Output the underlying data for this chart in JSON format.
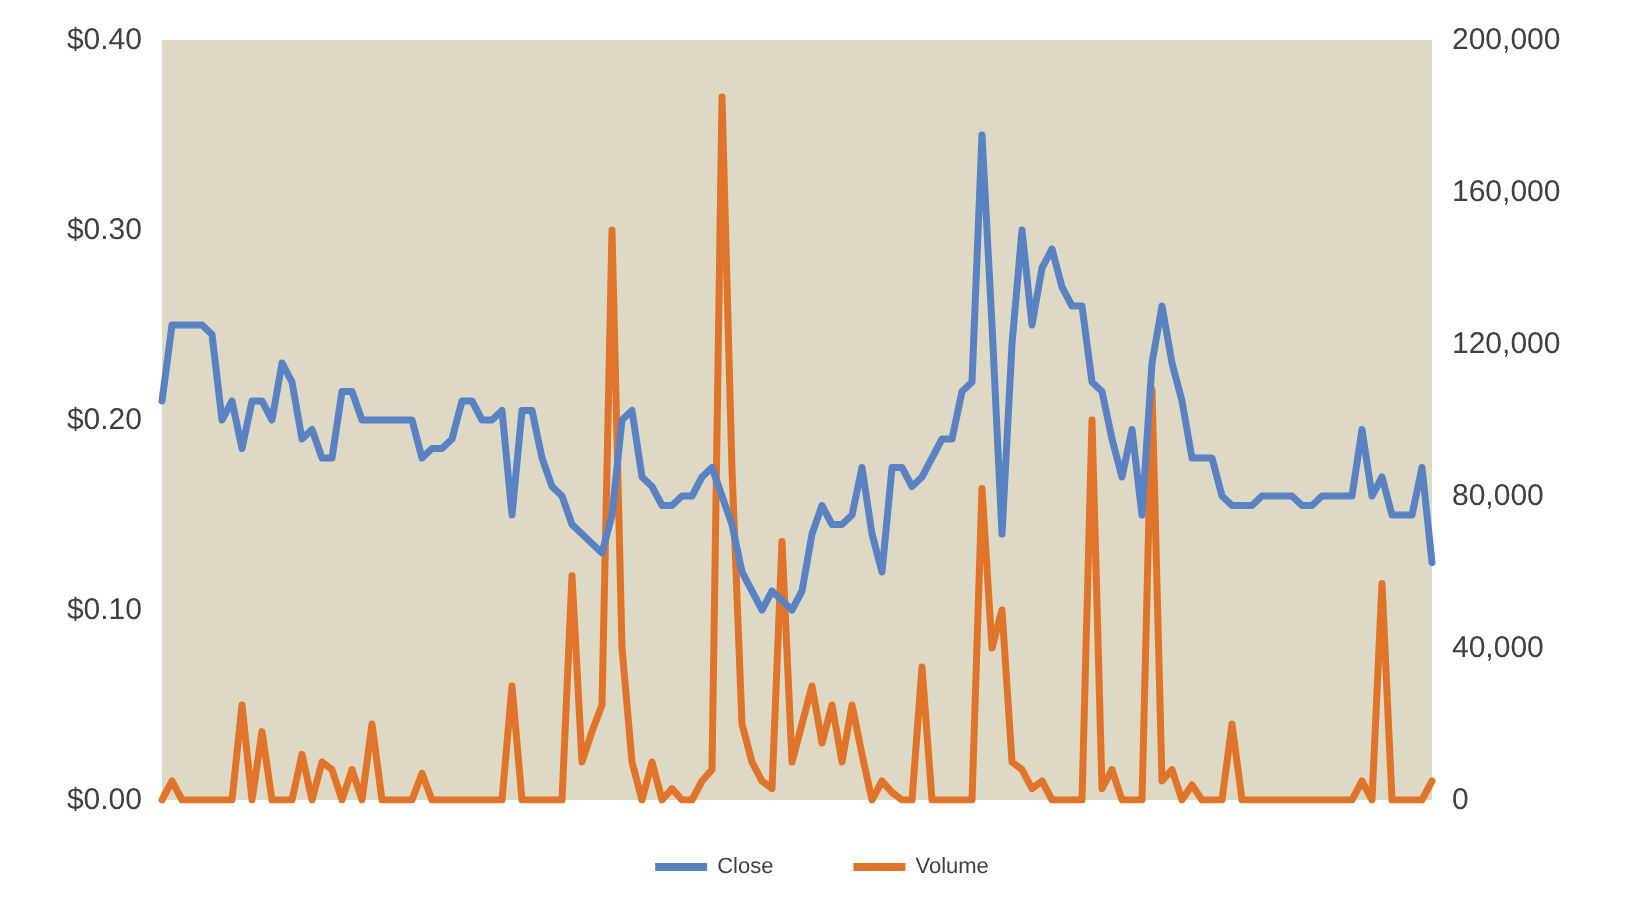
{
  "chart_data": {
    "type": "line",
    "categories": [
      null,
      null,
      null,
      null,
      null,
      null,
      null,
      null,
      null,
      null,
      null,
      null,
      null,
      null,
      null,
      null,
      null,
      null,
      null,
      null,
      null,
      null,
      null,
      null,
      null,
      null,
      null,
      null,
      null,
      null,
      null,
      null,
      null,
      null,
      null,
      null,
      null,
      null,
      null,
      null,
      null,
      null,
      null,
      null,
      null,
      null,
      null,
      null,
      null,
      null,
      null,
      null,
      null,
      null,
      null,
      null,
      null,
      null,
      null,
      null,
      null,
      null,
      null,
      null,
      null,
      null,
      null,
      null,
      null,
      null,
      null,
      null,
      null,
      null,
      null,
      null,
      null,
      null,
      null,
      null,
      null,
      null,
      null,
      null,
      null,
      null,
      null,
      null,
      null,
      null,
      null,
      null,
      null,
      null,
      null,
      null,
      null,
      null,
      null,
      null,
      null,
      null,
      null,
      null,
      null,
      null,
      null,
      null,
      null,
      null,
      null,
      null,
      null,
      null,
      null,
      null,
      null,
      null,
      null,
      null,
      null,
      null,
      null,
      null,
      null,
      null,
      null,
      null
    ],
    "series": [
      {
        "name": "Close",
        "color": "#5a82c3",
        "values": [
          0.21,
          0.25,
          0.25,
          0.25,
          0.25,
          0.245,
          0.2,
          0.21,
          0.185,
          0.21,
          0.21,
          0.2,
          0.23,
          0.22,
          0.19,
          0.195,
          0.18,
          0.18,
          0.215,
          0.215,
          0.2,
          0.2,
          0.2,
          0.2,
          0.2,
          0.2,
          0.18,
          0.185,
          0.185,
          0.19,
          0.21,
          0.21,
          0.2,
          0.2,
          0.205,
          0.15,
          0.205,
          0.205,
          0.18,
          0.165,
          0.16,
          0.145,
          0.14,
          0.135,
          0.13,
          0.15,
          0.2,
          0.205,
          0.17,
          0.165,
          0.155,
          0.155,
          0.16,
          0.16,
          0.17,
          0.175,
          0.16,
          0.145,
          0.12,
          0.11,
          0.1,
          0.11,
          0.105,
          0.1,
          0.11,
          0.14,
          0.155,
          0.145,
          0.145,
          0.15,
          0.175,
          0.14,
          0.12,
          0.175,
          0.175,
          0.165,
          0.17,
          0.18,
          0.19,
          0.19,
          0.215,
          0.22,
          0.35,
          0.25,
          0.14,
          0.24,
          0.3,
          0.25,
          0.28,
          0.29,
          0.27,
          0.26,
          0.26,
          0.22,
          0.215,
          0.19,
          0.17,
          0.195,
          0.15,
          0.23,
          0.26,
          0.23,
          0.21,
          0.18,
          0.18,
          0.18,
          0.16,
          0.155,
          0.155,
          0.155,
          0.16,
          0.16,
          0.16,
          0.16,
          0.155,
          0.155,
          0.16,
          0.16,
          0.16,
          0.16,
          0.195,
          0.16,
          0.17,
          0.15,
          0.15,
          0.15,
          0.175,
          0.125
        ]
      },
      {
        "name": "Volume",
        "color": "#e0742a",
        "axis": "y2",
        "values": [
          0,
          5000,
          0,
          0,
          0,
          0,
          0,
          0,
          25000,
          0,
          18000,
          0,
          0,
          0,
          12000,
          0,
          10000,
          8000,
          0,
          8000,
          0,
          20000,
          0,
          0,
          0,
          0,
          7000,
          0,
          0,
          0,
          0,
          0,
          0,
          0,
          0,
          30000,
          0,
          0,
          0,
          0,
          0,
          59000,
          10000,
          18000,
          25000,
          150000,
          40000,
          10000,
          0,
          10000,
          0,
          3000,
          0,
          0,
          5000,
          8000,
          185000,
          87000,
          20000,
          10000,
          5000,
          3000,
          68000,
          10000,
          20000,
          30000,
          15000,
          25000,
          10000,
          25000,
          12000,
          0,
          5000,
          2000,
          0,
          0,
          35000,
          0,
          0,
          0,
          0,
          0,
          82000,
          40000,
          50000,
          10000,
          8000,
          3000,
          5000,
          0,
          0,
          0,
          0,
          100000,
          3000,
          8000,
          0,
          0,
          0,
          108000,
          5000,
          8000,
          0,
          4000,
          0,
          0,
          0,
          20000,
          0,
          0,
          0,
          0,
          0,
          0,
          0,
          0,
          0,
          0,
          0,
          0,
          5000,
          0,
          57000,
          0,
          0,
          0,
          0,
          5000
        ]
      }
    ],
    "ylim": [
      0,
      0.4
    ],
    "yticks": [
      {
        "value": 0,
        "label": "$0.00"
      },
      {
        "value": 0.1,
        "label": "$0.10"
      },
      {
        "value": 0.2,
        "label": "$0.20"
      },
      {
        "value": 0.3,
        "label": "$0.30"
      },
      {
        "value": 0.4,
        "label": "$0.40"
      }
    ],
    "y2lim": [
      0,
      200000
    ],
    "y2ticks": [
      {
        "value": 0,
        "label": "0"
      },
      {
        "value": 40000,
        "label": "40,000"
      },
      {
        "value": 80000,
        "label": "80,000"
      },
      {
        "value": 120000,
        "label": "120,000"
      },
      {
        "value": 160000,
        "label": "160,000"
      },
      {
        "value": 200000,
        "label": "200,000"
      }
    ],
    "grid": false,
    "legend": "bottom",
    "marker": "none",
    "line_style": "solid"
  }
}
